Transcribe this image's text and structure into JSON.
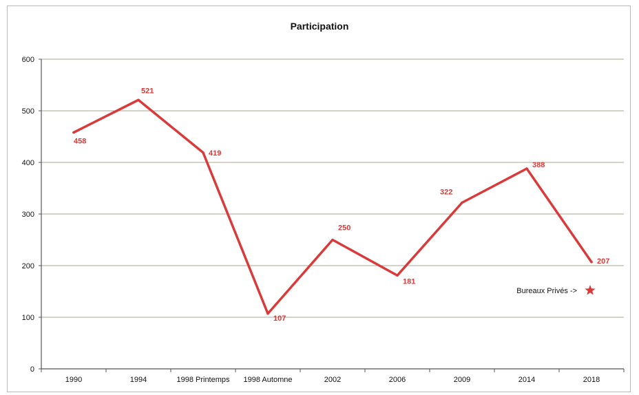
{
  "chart_data": {
    "type": "line",
    "title": "Participation",
    "xlabel": "",
    "ylabel": "",
    "categories": [
      "1990",
      "1994",
      "1998 Printemps",
      "1998 Automne",
      "2002",
      "2006",
      "2009",
      "2014",
      "2018"
    ],
    "series": [
      {
        "values": [
          458,
          521,
          419,
          107,
          250,
          181,
          322,
          388,
          207
        ],
        "color": "#d93a3a"
      }
    ],
    "data_labels": [
      "458",
      "521",
      "419",
      "107",
      "250",
      "181",
      "322",
      "388",
      "207"
    ],
    "ylim": [
      0,
      600
    ],
    "yticks": [
      0,
      100,
      200,
      300,
      400,
      500,
      600
    ],
    "ytick_labels": [
      "0",
      "100",
      "200",
      "300",
      "400",
      "500",
      "600"
    ],
    "grid": true,
    "legend": "none",
    "annotation": {
      "text": "Bureaux Privés ->",
      "marker": "star-icon",
      "color": "#d93a3a"
    }
  }
}
